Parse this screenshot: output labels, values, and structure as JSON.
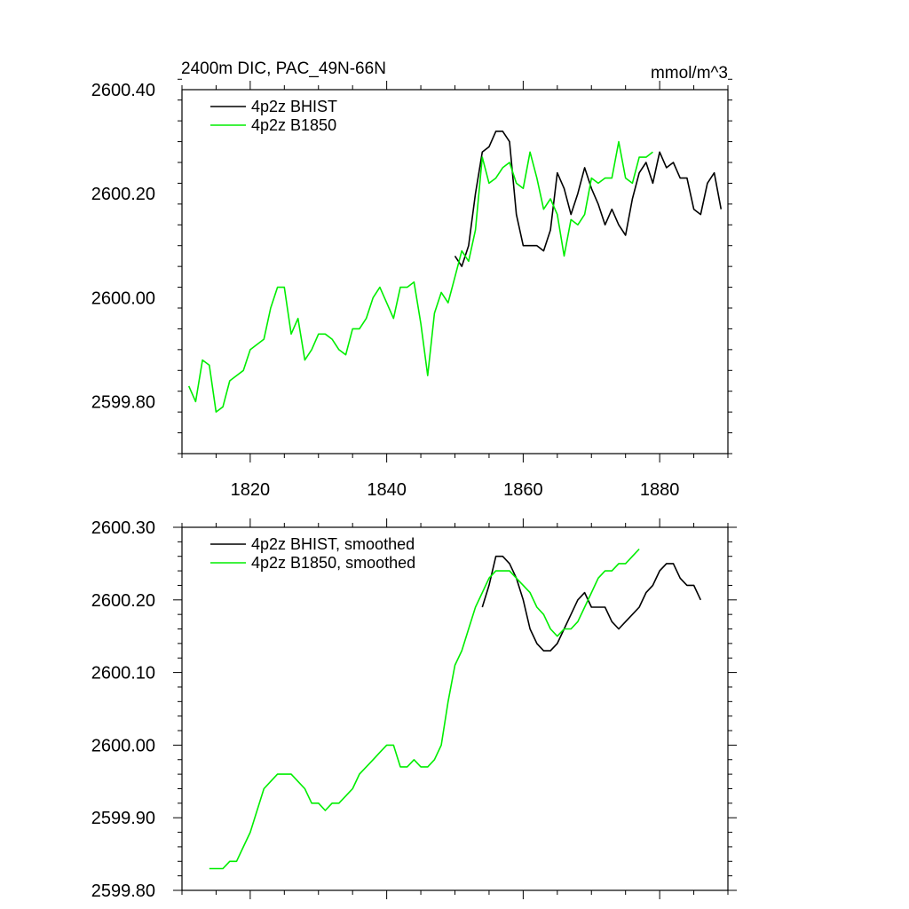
{
  "title_left": "2400m DIC, PAC_49N-66N",
  "title_right": "mmol/m^3",
  "colors": {
    "bhist": "#000000",
    "b1850": "#00ee00"
  },
  "chart_data": [
    {
      "type": "line",
      "title": "2400m DIC, PAC_49N-66N",
      "units": "mmol/m^3",
      "xlim": [
        1810,
        1890
      ],
      "ylim": [
        2599.7,
        2600.4
      ],
      "xticks": [
        1820,
        1840,
        1860,
        1880
      ],
      "xtick_labels": [
        "1820",
        "1840",
        "1860",
        "1880"
      ],
      "yticks": [
        2599.8,
        2600.0,
        2600.2,
        2600.4
      ],
      "ytick_labels": [
        "2599.80",
        "2600.00",
        "2600.20",
        "2600.40"
      ],
      "legend": [
        "4p2z BHIST",
        "4p2z B1850"
      ],
      "legend_position": "top-left",
      "series": [
        {
          "name": "4p2z BHIST",
          "color": "#000000",
          "x": [
            1850,
            1851,
            1852,
            1853,
            1854,
            1855,
            1856,
            1857,
            1858,
            1859,
            1860,
            1861,
            1862,
            1863,
            1864,
            1865,
            1866,
            1867,
            1868,
            1869,
            1870,
            1871,
            1872,
            1873,
            1874,
            1875,
            1876,
            1877,
            1878,
            1879,
            1880,
            1881,
            1882,
            1883,
            1884,
            1885,
            1886,
            1887,
            1888,
            1889
          ],
          "values": [
            2600.08,
            2600.06,
            2600.1,
            2600.2,
            2600.28,
            2600.29,
            2600.32,
            2600.32,
            2600.3,
            2600.16,
            2600.1,
            2600.1,
            2600.1,
            2600.09,
            2600.13,
            2600.24,
            2600.21,
            2600.16,
            2600.2,
            2600.25,
            2600.21,
            2600.18,
            2600.14,
            2600.17,
            2600.14,
            2600.12,
            2600.19,
            2600.24,
            2600.26,
            2600.22,
            2600.28,
            2600.25,
            2600.26,
            2600.23,
            2600.23,
            2600.17,
            2600.16,
            2600.22,
            2600.24,
            2600.17
          ]
        },
        {
          "name": "4p2z B1850",
          "color": "#00ee00",
          "x": [
            1811,
            1812,
            1813,
            1814,
            1815,
            1816,
            1817,
            1818,
            1819,
            1820,
            1821,
            1822,
            1823,
            1824,
            1825,
            1826,
            1827,
            1828,
            1829,
            1830,
            1831,
            1832,
            1833,
            1834,
            1835,
            1836,
            1837,
            1838,
            1839,
            1840,
            1841,
            1842,
            1843,
            1844,
            1845,
            1846,
            1847,
            1848,
            1849,
            1850,
            1851,
            1852,
            1853,
            1854,
            1855,
            1856,
            1857,
            1858,
            1859,
            1860,
            1861,
            1862,
            1863,
            1864,
            1865,
            1866,
            1867,
            1868,
            1869,
            1870,
            1871,
            1872,
            1873,
            1874,
            1875,
            1876,
            1877,
            1878,
            1879
          ],
          "values": [
            2599.83,
            2599.8,
            2599.88,
            2599.87,
            2599.78,
            2599.79,
            2599.84,
            2599.85,
            2599.86,
            2599.9,
            2599.91,
            2599.92,
            2599.98,
            2600.02,
            2600.02,
            2599.93,
            2599.96,
            2599.88,
            2599.9,
            2599.93,
            2599.93,
            2599.92,
            2599.9,
            2599.89,
            2599.94,
            2599.94,
            2599.96,
            2600.0,
            2600.02,
            2599.99,
            2599.96,
            2600.02,
            2600.02,
            2600.03,
            2599.95,
            2599.85,
            2599.97,
            2600.01,
            2599.99,
            2600.04,
            2600.09,
            2600.07,
            2600.13,
            2600.27,
            2600.22,
            2600.23,
            2600.25,
            2600.26,
            2600.22,
            2600.21,
            2600.28,
            2600.23,
            2600.17,
            2600.19,
            2600.16,
            2600.08,
            2600.15,
            2600.14,
            2600.16,
            2600.23,
            2600.22,
            2600.23,
            2600.23,
            2600.3,
            2600.23,
            2600.22,
            2600.27,
            2600.27,
            2600.28
          ]
        }
      ]
    },
    {
      "type": "line",
      "xlim": [
        1810,
        1890
      ],
      "ylim": [
        2599.8,
        2600.3
      ],
      "xticks": [
        1820,
        1840,
        1860,
        1880
      ],
      "yticks": [
        2599.8,
        2599.9,
        2600.0,
        2600.1,
        2600.2,
        2600.3
      ],
      "ytick_labels": [
        "2599.80",
        "2599.90",
        "2600.00",
        "2600.10",
        "2600.20",
        "2600.30"
      ],
      "legend": [
        "4p2z BHIST, smoothed",
        "4p2z B1850, smoothed"
      ],
      "legend_position": "top-left",
      "series": [
        {
          "name": "4p2z BHIST, smoothed",
          "color": "#000000",
          "x": [
            1854,
            1855,
            1856,
            1857,
            1858,
            1859,
            1860,
            1861,
            1862,
            1863,
            1864,
            1865,
            1866,
            1867,
            1868,
            1869,
            1870,
            1871,
            1872,
            1873,
            1874,
            1875,
            1876,
            1877,
            1878,
            1879,
            1880,
            1881,
            1882,
            1883,
            1884,
            1885,
            1886
          ],
          "values": [
            2600.19,
            2600.22,
            2600.26,
            2600.26,
            2600.25,
            2600.23,
            2600.2,
            2600.16,
            2600.14,
            2600.13,
            2600.13,
            2600.14,
            2600.16,
            2600.18,
            2600.2,
            2600.21,
            2600.19,
            2600.19,
            2600.19,
            2600.17,
            2600.16,
            2600.17,
            2600.18,
            2600.19,
            2600.21,
            2600.22,
            2600.24,
            2600.25,
            2600.25,
            2600.23,
            2600.22,
            2600.22,
            2600.2
          ]
        },
        {
          "name": "4p2z B1850, smoothed",
          "color": "#00ee00",
          "x": [
            1814,
            1815,
            1816,
            1817,
            1818,
            1819,
            1820,
            1821,
            1822,
            1823,
            1824,
            1825,
            1826,
            1827,
            1828,
            1829,
            1830,
            1831,
            1832,
            1833,
            1834,
            1835,
            1836,
            1837,
            1838,
            1839,
            1840,
            1841,
            1842,
            1843,
            1844,
            1845,
            1846,
            1847,
            1848,
            1849,
            1850,
            1851,
            1852,
            1853,
            1854,
            1855,
            1856,
            1857,
            1858,
            1859,
            1860,
            1861,
            1862,
            1863,
            1864,
            1865,
            1866,
            1867,
            1868,
            1869,
            1870,
            1871,
            1872,
            1873,
            1874,
            1875,
            1876,
            1877
          ],
          "values": [
            2599.83,
            2599.83,
            2599.83,
            2599.84,
            2599.84,
            2599.86,
            2599.88,
            2599.91,
            2599.94,
            2599.95,
            2599.96,
            2599.96,
            2599.96,
            2599.95,
            2599.94,
            2599.92,
            2599.92,
            2599.91,
            2599.92,
            2599.92,
            2599.93,
            2599.94,
            2599.96,
            2599.97,
            2599.98,
            2599.99,
            2600.0,
            2600.0,
            2599.97,
            2599.97,
            2599.98,
            2599.97,
            2599.97,
            2599.98,
            2600.0,
            2600.06,
            2600.11,
            2600.13,
            2600.16,
            2600.19,
            2600.21,
            2600.23,
            2600.24,
            2600.24,
            2600.24,
            2600.23,
            2600.22,
            2600.21,
            2600.19,
            2600.18,
            2600.16,
            2600.15,
            2600.16,
            2600.16,
            2600.17,
            2600.19,
            2600.21,
            2600.23,
            2600.24,
            2600.24,
            2600.25,
            2600.25,
            2600.26,
            2600.27
          ]
        }
      ]
    }
  ]
}
